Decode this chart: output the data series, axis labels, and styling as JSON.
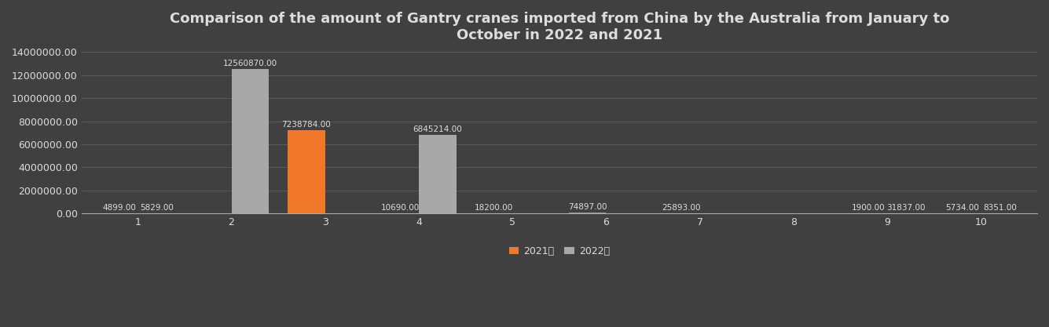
{
  "title": "Comparison of the amount of Gantry cranes imported from China by the Australia from January to\nOctober in 2022 and 2021",
  "months": [
    "1",
    "2",
    "3",
    "4",
    "5",
    "6",
    "7",
    "8",
    "9",
    "10"
  ],
  "values_2021": [
    4899,
    0,
    7238784,
    10690,
    18200,
    74897,
    25893,
    0,
    1900,
    5734
  ],
  "values_2022": [
    5829,
    12560870,
    0,
    6845214,
    0,
    0,
    0,
    0,
    31837,
    8351
  ],
  "labels_2021": [
    "4899.00",
    "",
    "7238784.00",
    "10690.00",
    "18200.00",
    "74897.00",
    "25893.00",
    "",
    "1900.00",
    "5734.00"
  ],
  "labels_2022": [
    "5829.00",
    "12560870.00",
    "",
    "6845214.00",
    "",
    "",
    "",
    "",
    "31837.00",
    "8351.00"
  ],
  "color_2021": "#F07828",
  "color_2022": "#A8A8A8",
  "background_color": "#404040",
  "text_color": "#DDDDDD",
  "legend_labels": [
    "2021年",
    "2022年"
  ],
  "ylim": [
    0,
    14000000
  ],
  "yticks": [
    0,
    2000000,
    4000000,
    6000000,
    8000000,
    10000000,
    12000000,
    14000000
  ],
  "bar_width": 0.4,
  "title_fontsize": 13,
  "label_fontsize": 7.5,
  "tick_fontsize": 9,
  "legend_fontsize": 9,
  "grid_color": "#666666"
}
